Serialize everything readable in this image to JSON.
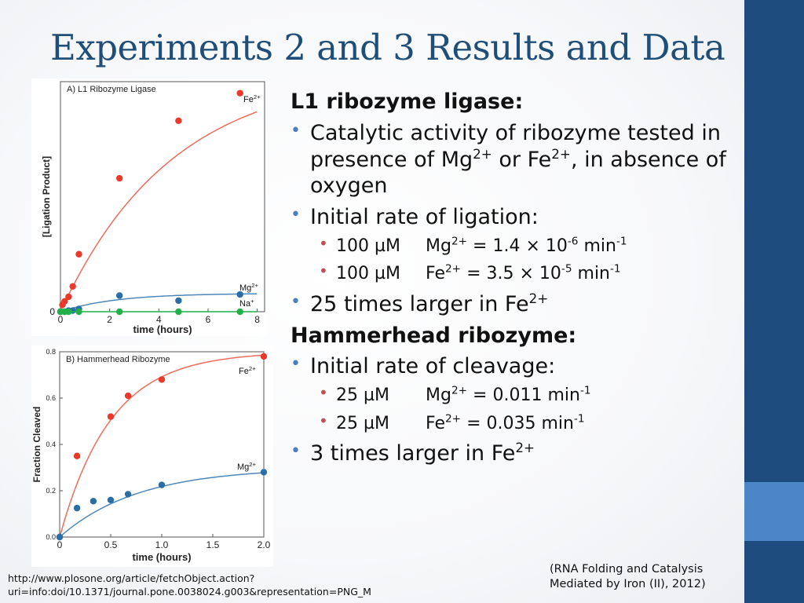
{
  "slide": {
    "title": "Experiments 2 and 3 Results and Data",
    "source_url": "http://www.plosone.org/article/fetchObject.action?uri=info:doi/10.1371/journal.pone.0038024.g003&representation=PNG_M",
    "citation_line1": "(RNA Folding and Catalysis",
    "citation_line2": "Mediated by Iron (II), 2012)"
  },
  "body": {
    "l1_heading": "L1 ribozyme ligase:",
    "l1_b1_pre": "Catalytic activity of ribozyme tested in presence of Mg",
    "l1_b1_sup1": "2+",
    "l1_b1_mid": " or Fe",
    "l1_b1_sup2": "2+",
    "l1_b1_post": ", in absence of oxygen",
    "l1_b2": "Initial rate of ligation:",
    "l1_s1_conc": "100 µM",
    "l1_s1_ion": "Mg",
    "l1_s1_ion_sup": "2+",
    "l1_s1_val": " = 1.4 × 10",
    "l1_s1_exp": "-6",
    "l1_s1_unit": " min",
    "l1_s1_unit_sup": "-1",
    "l1_s2_conc": "100 µM",
    "l1_s2_ion": "Fe",
    "l1_s2_ion_sup": "2+",
    "l1_s2_val": " = 3.5 × 10",
    "l1_s2_exp": "-5",
    "l1_s2_unit": " min",
    "l1_s2_unit_sup": "-1",
    "l1_b3_pre": "25 times larger in Fe",
    "l1_b3_sup": "2+",
    "hh_heading": "Hammerhead ribozyme:",
    "hh_b1": "Initial rate of cleavage:",
    "hh_s1_conc": "25 µM",
    "hh_s1_ion": "Mg",
    "hh_s1_ion_sup": "2+",
    "hh_s1_val": " = 0.011 min",
    "hh_s1_sup": "-1",
    "hh_s2_conc": "25 µM",
    "hh_s2_ion": "Fe",
    "hh_s2_ion_sup": "2+",
    "hh_s2_val": " = 0.035 min",
    "hh_s2_sup": "-1",
    "hh_b2_pre": "3 times larger in Fe",
    "hh_b2_sup": "2+"
  },
  "colors": {
    "title": "#1f4e79",
    "side_bar": "#1e4c7f",
    "side_accent": "#4d86c6",
    "fe_series": "#e8392b",
    "mg_series": "#2a6ea8",
    "na_series": "#22b04a",
    "fe_curve": "#ee6c5c",
    "mg_curve": "#4f87b9"
  },
  "chart_data": [
    {
      "type": "scatter",
      "title": "A) L1 Ribozyme Ligase",
      "xlabel": "time (hours)",
      "ylabel": "[Ligation Product]",
      "xlim": [
        0,
        8.3
      ],
      "ylim": [
        0,
        1
      ],
      "xticks": [
        0,
        2,
        4,
        6,
        8
      ],
      "xtick_labels": [
        "0",
        "2",
        "4",
        "6",
        "8"
      ],
      "ytick_labels": [
        "0"
      ],
      "series": [
        {
          "name": "Fe2+",
          "color": "#e8392b",
          "curve": "exp",
          "A": 1.05,
          "k": 0.22,
          "x": [
            0,
            0.08,
            0.17,
            0.33,
            0.5,
            0.75,
            2.4,
            4.8,
            7.3
          ],
          "y": [
            0,
            0.03,
            0.045,
            0.065,
            0.11,
            0.25,
            0.58,
            0.83,
            0.95
          ]
        },
        {
          "name": "Mg2+",
          "color": "#2a6ea8",
          "curve": "exp",
          "A": 0.08,
          "k": 0.45,
          "x": [
            0,
            0.17,
            0.33,
            0.5,
            0.75,
            2.4,
            4.8,
            7.3
          ],
          "y": [
            0,
            0,
            0.005,
            0.005,
            0.012,
            0.07,
            0.048,
            0.075
          ]
        },
        {
          "name": "Na+",
          "color": "#22b04a",
          "curve": "flat",
          "x": [
            0,
            0.17,
            0.33,
            0.75,
            2.4,
            4.8,
            7.3
          ],
          "y": [
            0,
            0,
            0,
            0,
            0,
            0,
            0
          ]
        }
      ]
    },
    {
      "type": "scatter",
      "title": "B) Hammerhead Ribozyme",
      "xlabel": "time (hours)",
      "ylabel": "Fraction Cleaved",
      "xlim": [
        0,
        2
      ],
      "ylim": [
        0,
        0.8
      ],
      "xticks": [
        0,
        0.5,
        1.0,
        1.5,
        2.0
      ],
      "xtick_labels": [
        "0",
        "0.5",
        "1.0",
        "1.5",
        "2.0"
      ],
      "yticks": [
        0,
        0.2,
        0.4,
        0.6,
        0.8
      ],
      "ytick_labels": [
        "0.0",
        "0.2",
        "0.4",
        "0.6",
        "0.8"
      ],
      "series": [
        {
          "name": "Fe2+",
          "color": "#e8392b",
          "curve": "exp",
          "A": 0.8,
          "k": 2.0,
          "x": [
            0,
            0.17,
            0.5,
            0.67,
            1.0,
            2.0
          ],
          "y": [
            0,
            0.35,
            0.52,
            0.61,
            0.68,
            0.78
          ]
        },
        {
          "name": "Mg2+",
          "color": "#2a6ea8",
          "curve": "exp",
          "A": 0.3,
          "k": 1.3,
          "x": [
            0,
            0.17,
            0.33,
            0.5,
            0.67,
            1.0,
            2.0
          ],
          "y": [
            0,
            0.125,
            0.155,
            0.16,
            0.185,
            0.225,
            0.28
          ]
        }
      ]
    }
  ]
}
